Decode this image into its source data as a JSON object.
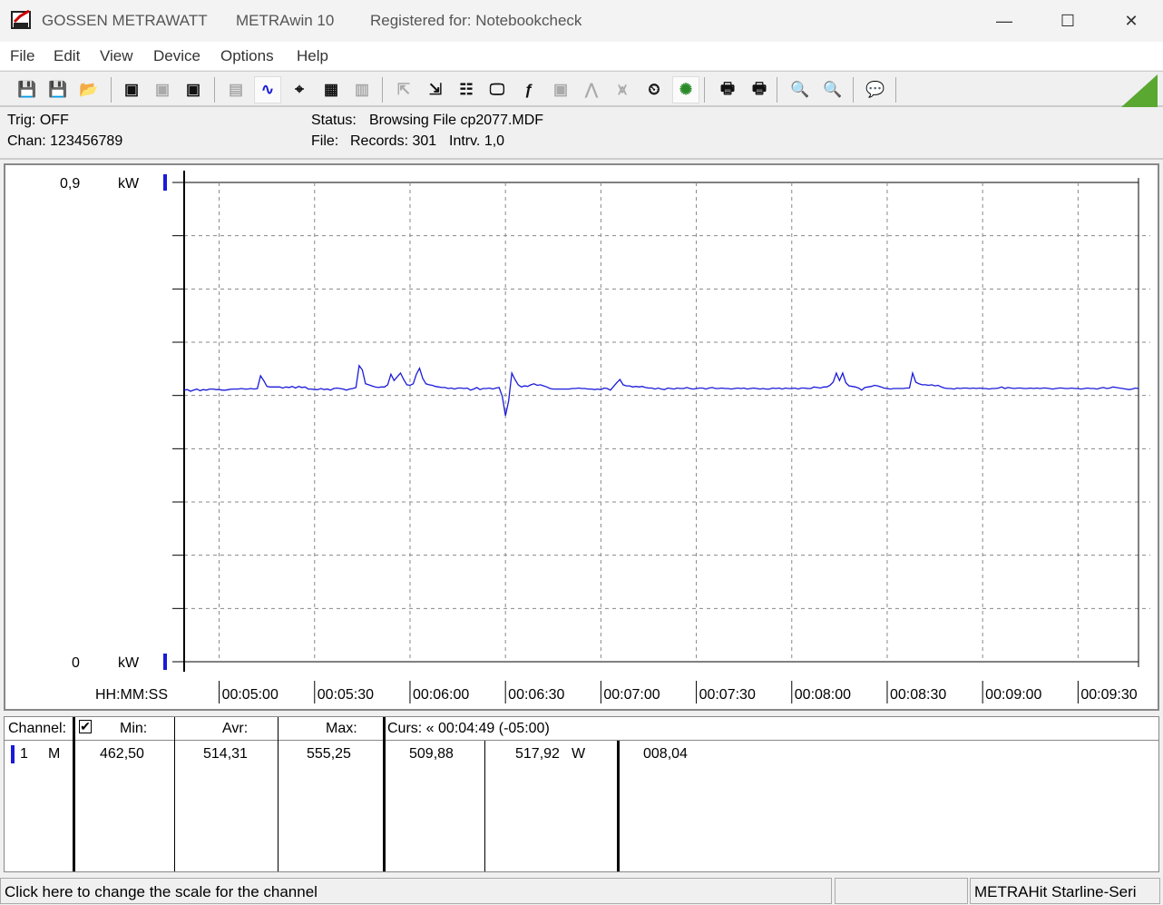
{
  "window": {
    "brand": "GOSSEN METRAWATT",
    "app": "METRAwin 10",
    "registered": "Registered for: Notebookcheck",
    "minimize": "—",
    "maximize": "☐",
    "close": "✕"
  },
  "menu": [
    "File",
    "Edit",
    "View",
    "Device",
    "Options",
    "Help"
  ],
  "toolbar": [
    {
      "name": "save-icon",
      "glyph": "💾",
      "state": "normal"
    },
    {
      "name": "save-as-icon",
      "glyph": "💾",
      "state": "normal"
    },
    {
      "name": "open-folder-icon",
      "glyph": "📂",
      "state": "normal"
    },
    {
      "name": "device-read-icon",
      "glyph": "▣",
      "state": "normal"
    },
    {
      "name": "device-stop-icon",
      "glyph": "▣",
      "state": "disabled"
    },
    {
      "name": "memory-read-icon",
      "glyph": "▣",
      "state": "normal"
    },
    {
      "name": "display-icon",
      "glyph": "▤",
      "state": "disabled"
    },
    {
      "name": "waveform-icon",
      "glyph": "∿",
      "state": "active"
    },
    {
      "name": "crosshair-icon",
      "glyph": "⌖",
      "state": "normal"
    },
    {
      "name": "table-icon",
      "glyph": "▦",
      "state": "normal"
    },
    {
      "name": "histogram-icon",
      "glyph": "▥",
      "state": "disabled"
    },
    {
      "name": "export-icon",
      "glyph": "⇱",
      "state": "disabled"
    },
    {
      "name": "import-icon",
      "glyph": "⇲",
      "state": "normal"
    },
    {
      "name": "channel-settings-icon",
      "glyph": "☷",
      "state": "normal"
    },
    {
      "name": "monitor-icon",
      "glyph": "🖵",
      "state": "normal"
    },
    {
      "name": "function-icon",
      "glyph": "ƒ",
      "state": "normal"
    },
    {
      "name": "meter-icon",
      "glyph": "▣",
      "state": "disabled"
    },
    {
      "name": "trigger-icon",
      "glyph": "⋀",
      "state": "disabled"
    },
    {
      "name": "signal-icon",
      "glyph": "⩙",
      "state": "disabled"
    },
    {
      "name": "timer-icon",
      "glyph": "⏲",
      "state": "normal"
    },
    {
      "name": "bug-icon",
      "glyph": "✺",
      "state": "active"
    },
    {
      "name": "print-preview-icon",
      "glyph": "🖶",
      "state": "normal"
    },
    {
      "name": "print-icon",
      "glyph": "🖶",
      "state": "normal"
    },
    {
      "name": "zoom-waveform-icon",
      "glyph": "🔍",
      "state": "normal"
    },
    {
      "name": "zoom-peak-icon",
      "glyph": "🔍",
      "state": "normal"
    },
    {
      "name": "comment-icon",
      "glyph": "💬",
      "state": "normal"
    }
  ],
  "brand_color": "#5aa832",
  "info": {
    "trig": "Trig: OFF",
    "chan": "Chan:  123456789",
    "status_label": "Status:",
    "status_value": "Browsing File cp2077.MDF",
    "file_label": "File:",
    "records": "Records: 301",
    "interval": "Intrv. 1,0"
  },
  "chart_data": {
    "type": "line",
    "ylabel_top": "0,9",
    "ylabel_bottom": "0",
    "y_unit": "kW",
    "ylim": [
      0,
      0.9
    ],
    "x_axis_label": "HH:MM:SS",
    "x_ticks": [
      "00:05:00",
      "00:05:30",
      "00:06:00",
      "00:06:30",
      "00:07:00",
      "00:07:30",
      "00:08:00",
      "00:08:30",
      "00:09:00",
      "00:09:30"
    ],
    "x_start": "00:04:49",
    "x_end": "00:09:49",
    "interval_s": 1,
    "grid": true,
    "line_color": "#1a1ad8",
    "series": [
      {
        "unit": "W",
        "values": [
          510,
          511,
          508,
          510,
          512,
          509,
          511,
          510,
          512,
          512,
          511,
          511,
          510,
          510,
          511,
          512,
          512,
          512,
          513,
          512,
          512,
          513,
          512,
          513,
          537,
          528,
          517,
          516,
          516,
          516,
          516,
          514,
          516,
          515,
          517,
          514,
          517,
          515,
          516,
          512,
          512,
          511,
          511,
          513,
          511,
          512,
          510,
          513,
          514,
          513,
          512,
          510,
          512,
          513,
          515,
          556,
          548,
          522,
          520,
          518,
          516,
          515,
          516,
          516,
          520,
          540,
          528,
          535,
          542,
          530,
          520,
          519,
          522,
          540,
          551,
          532,
          522,
          520,
          519,
          517,
          516,
          515,
          515,
          513,
          514,
          512,
          514,
          514,
          513,
          514,
          510,
          512,
          515,
          511,
          513,
          513,
          514,
          512,
          514,
          515,
          498,
          462,
          490,
          542,
          530,
          520,
          516,
          518,
          517,
          520,
          522,
          519,
          520,
          518,
          516,
          513,
          512,
          512,
          512,
          512,
          512,
          512,
          513,
          513,
          514,
          513,
          513,
          512,
          512,
          511,
          512,
          511,
          514,
          513,
          510,
          517,
          524,
          530,
          520,
          518,
          518,
          516,
          517,
          516,
          517,
          515,
          514,
          514,
          512,
          514,
          512,
          511,
          514,
          513,
          512,
          514,
          513,
          513,
          515,
          513,
          512,
          513,
          514,
          514,
          512,
          514,
          515,
          513,
          513,
          514,
          513,
          513,
          512,
          513,
          514,
          513,
          514,
          512,
          513,
          514,
          513,
          512,
          513,
          512,
          512,
          514,
          513,
          514,
          512,
          514,
          513,
          513,
          514,
          512,
          514,
          514,
          513,
          513,
          516,
          515,
          514,
          516,
          516,
          519,
          525,
          542,
          528,
          542,
          524,
          518,
          517,
          516,
          514,
          510,
          515,
          516,
          517,
          519,
          518,
          516,
          514,
          513,
          512,
          513,
          513,
          513,
          513,
          514,
          514,
          542,
          525,
          522,
          520,
          520,
          519,
          520,
          518,
          519,
          516,
          514,
          513,
          513,
          512,
          514,
          513,
          514,
          514,
          513,
          514,
          513,
          514,
          513,
          513,
          512,
          513,
          513,
          514,
          516,
          513,
          515,
          514,
          513,
          514,
          514,
          513,
          513,
          514,
          513,
          514,
          513,
          514,
          514,
          513,
          512,
          513,
          514,
          514,
          513,
          513,
          514,
          513,
          513,
          512,
          513,
          514,
          513,
          513,
          512,
          514,
          515,
          513,
          514,
          516,
          515,
          514,
          513,
          512,
          511,
          512,
          514,
          513
        ]
      }
    ]
  },
  "table": {
    "channel_header": "Channel:",
    "checked": true,
    "min_header": "Min:",
    "avr_header": "Avr:",
    "max_header": "Max:",
    "cursor_header": "Curs: « 00:04:49 (-05:00)",
    "rows": [
      {
        "channel": "1",
        "mode": "M",
        "min": "462,50",
        "avr": "514,31",
        "max": "555,25",
        "cursor": "509,88",
        "value": "517,92",
        "unit": "W",
        "extra": "008,04"
      }
    ]
  },
  "statusbar": {
    "hint": "Click here to change the scale for the channel",
    "middle": "",
    "device": "METRAHit Starline-Seri"
  }
}
